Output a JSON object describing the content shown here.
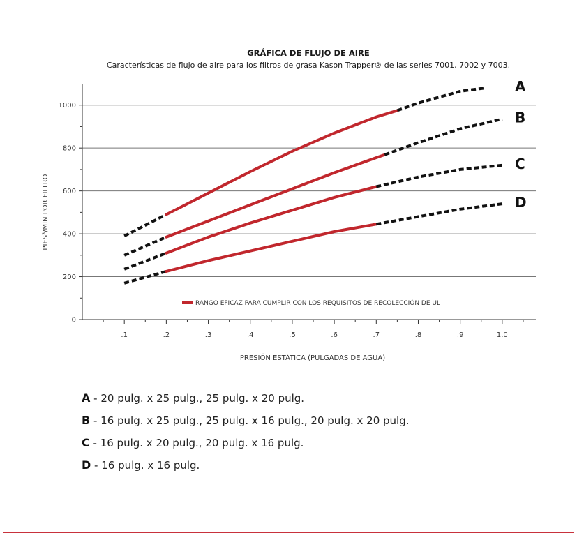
{
  "chart_data": {
    "type": "line",
    "title": "GRÁFICA DE FLUJO DE AIRE",
    "subtitle": "Características de flujo de aire para los filtros de grasa Kason Trapper® de las series 7001, 7002 y 7003.",
    "xlabel": "PRESIÓN ESTÁTICA (PULGADAS DE AGUA)",
    "ylabel": "PIES³/MIN POR FILTRO",
    "xlim": [
      0,
      1.08
    ],
    "ylim": [
      0,
      1100
    ],
    "xticks": [
      0.1,
      0.2,
      0.3,
      0.4,
      0.5,
      0.6,
      0.7,
      0.8,
      0.9,
      1.0
    ],
    "xtick_labels": [
      ".1",
      ".2",
      ".3",
      ".4",
      ".5",
      ".6",
      ".7",
      ".8",
      ".9",
      "1.0"
    ],
    "yticks": [
      0,
      200,
      400,
      600,
      800,
      1000
    ],
    "ytick_labels": [
      "0",
      "200",
      "400",
      "600",
      "800",
      "1000"
    ],
    "grid": "horizontal",
    "legend": "RANGO EFICAZ PARA CUMPLIR CON LOS REQUISITOS DE RECOLECCIÓN DE UL",
    "colors": {
      "effective": "#c1272d",
      "extrapolated": "#111111",
      "grid": "#777777"
    },
    "series": [
      {
        "name": "A",
        "x": [
          0.1,
          0.2,
          0.3,
          0.4,
          0.5,
          0.6,
          0.7,
          0.75,
          0.8,
          0.9,
          0.96
        ],
        "y": [
          390,
          490,
          590,
          690,
          785,
          870,
          945,
          975,
          1010,
          1065,
          1080
        ],
        "effective_range": [
          0.2,
          0.75
        ]
      },
      {
        "name": "B",
        "x": [
          0.1,
          0.2,
          0.3,
          0.4,
          0.5,
          0.6,
          0.7,
          0.8,
          0.9,
          1.0
        ],
        "y": [
          300,
          385,
          460,
          535,
          610,
          685,
          755,
          825,
          890,
          935
        ],
        "effective_range": [
          0.2,
          0.72
        ]
      },
      {
        "name": "C",
        "x": [
          0.1,
          0.2,
          0.3,
          0.4,
          0.5,
          0.6,
          0.7,
          0.8,
          0.9,
          1.0
        ],
        "y": [
          235,
          310,
          385,
          450,
          510,
          570,
          620,
          665,
          700,
          720
        ],
        "effective_range": [
          0.2,
          0.7
        ]
      },
      {
        "name": "D",
        "x": [
          0.1,
          0.2,
          0.3,
          0.4,
          0.5,
          0.6,
          0.7,
          0.8,
          0.9,
          1.0
        ],
        "y": [
          170,
          225,
          275,
          320,
          365,
          410,
          445,
          480,
          515,
          540
        ],
        "effective_range": [
          0.2,
          0.7
        ]
      }
    ]
  },
  "notes": [
    {
      "key": "A",
      "text": " - 20 pulg. x 25 pulg., 25 pulg. x 20 pulg."
    },
    {
      "key": "B",
      "text": " - 16 pulg. x 25 pulg., 25 pulg. x 16 pulg., 20 pulg. x 20 pulg."
    },
    {
      "key": "C",
      "text": " - 16 pulg. x 20 pulg., 20 pulg. x 16 pulg."
    },
    {
      "key": "D",
      "text": " - 16 pulg. x 16 pulg."
    }
  ]
}
